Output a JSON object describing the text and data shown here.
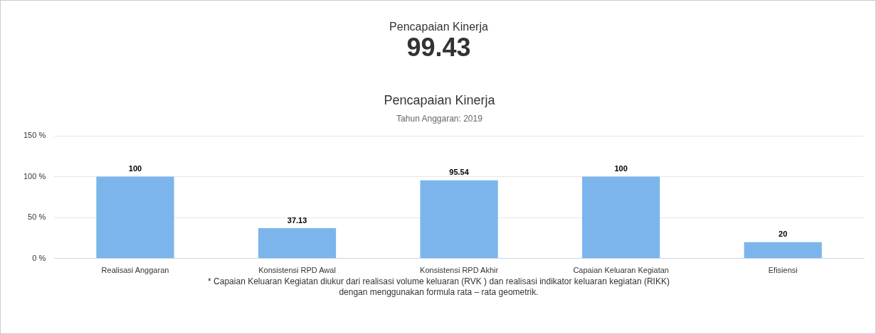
{
  "chart_data": [
    {
      "type": "other",
      "title": "Pencapaian Kinerja",
      "annotations": [
        "99.43"
      ]
    },
    {
      "type": "bar",
      "title": "Pencapaian Kinerja",
      "subtitle": "Tahun Anggaran: 2019",
      "categories": [
        "Realisasi Anggaran",
        "Konsistensi RPD Awal",
        "Konsistensi RPD Akhir",
        "Capaian Keluaran Kegiatan",
        "Efisiensi"
      ],
      "values": [
        100,
        37.13,
        95.54,
        100,
        20
      ],
      "color": "#7cb5ec",
      "ylim": [
        0,
        150
      ],
      "yticks": [
        {
          "value": 0,
          "label": "0 %"
        },
        {
          "value": 50,
          "label": "50 %"
        },
        {
          "value": 100,
          "label": "100 %"
        },
        {
          "value": 150,
          "label": "150 %"
        }
      ],
      "grid": "y",
      "legend": false,
      "data_labels": true,
      "annotations": [
        "* Capaian Keluaran Kegiatan diukur dari realisasi volume keluaran (RVK ) dan realisasi indikator keluaran kegiatan (RIKK)\ndengan menggunakan formula rata – rata geometrik."
      ]
    }
  ]
}
